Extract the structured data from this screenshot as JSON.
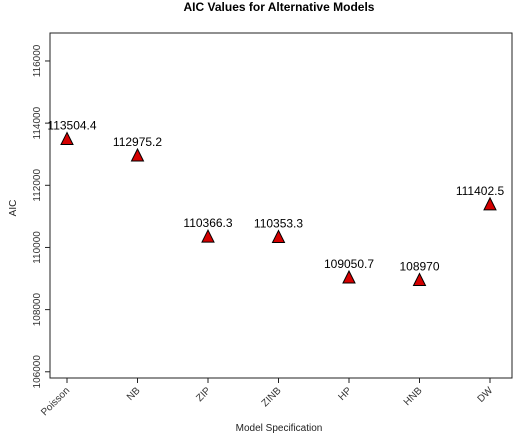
{
  "chart_data": {
    "type": "scatter",
    "title": "AIC Values for Alternative Models",
    "xlabel": "Model Specification",
    "ylabel": "AIC",
    "categories": [
      "Poisson",
      "NB",
      "ZIP",
      "ZINB",
      "HP",
      "HNB",
      "DW"
    ],
    "values": [
      113504.4,
      112975.2,
      110366.3,
      110353.3,
      109050.7,
      108970,
      111402.5
    ],
    "data_labels": [
      "113504.4",
      "112975.2",
      "110366.3",
      "110353.3",
      "109050.7",
      "108970",
      "111402.5"
    ],
    "ylim": [
      105800,
      116900
    ],
    "yticks": [
      106000,
      108000,
      110000,
      112000,
      114000,
      116000
    ],
    "ytick_labels": [
      "106000",
      "108000",
      "110000",
      "112000",
      "114000",
      "116000"
    ],
    "marker": "triangle",
    "marker_color": "#d40000",
    "grid": false,
    "legend": "none"
  }
}
